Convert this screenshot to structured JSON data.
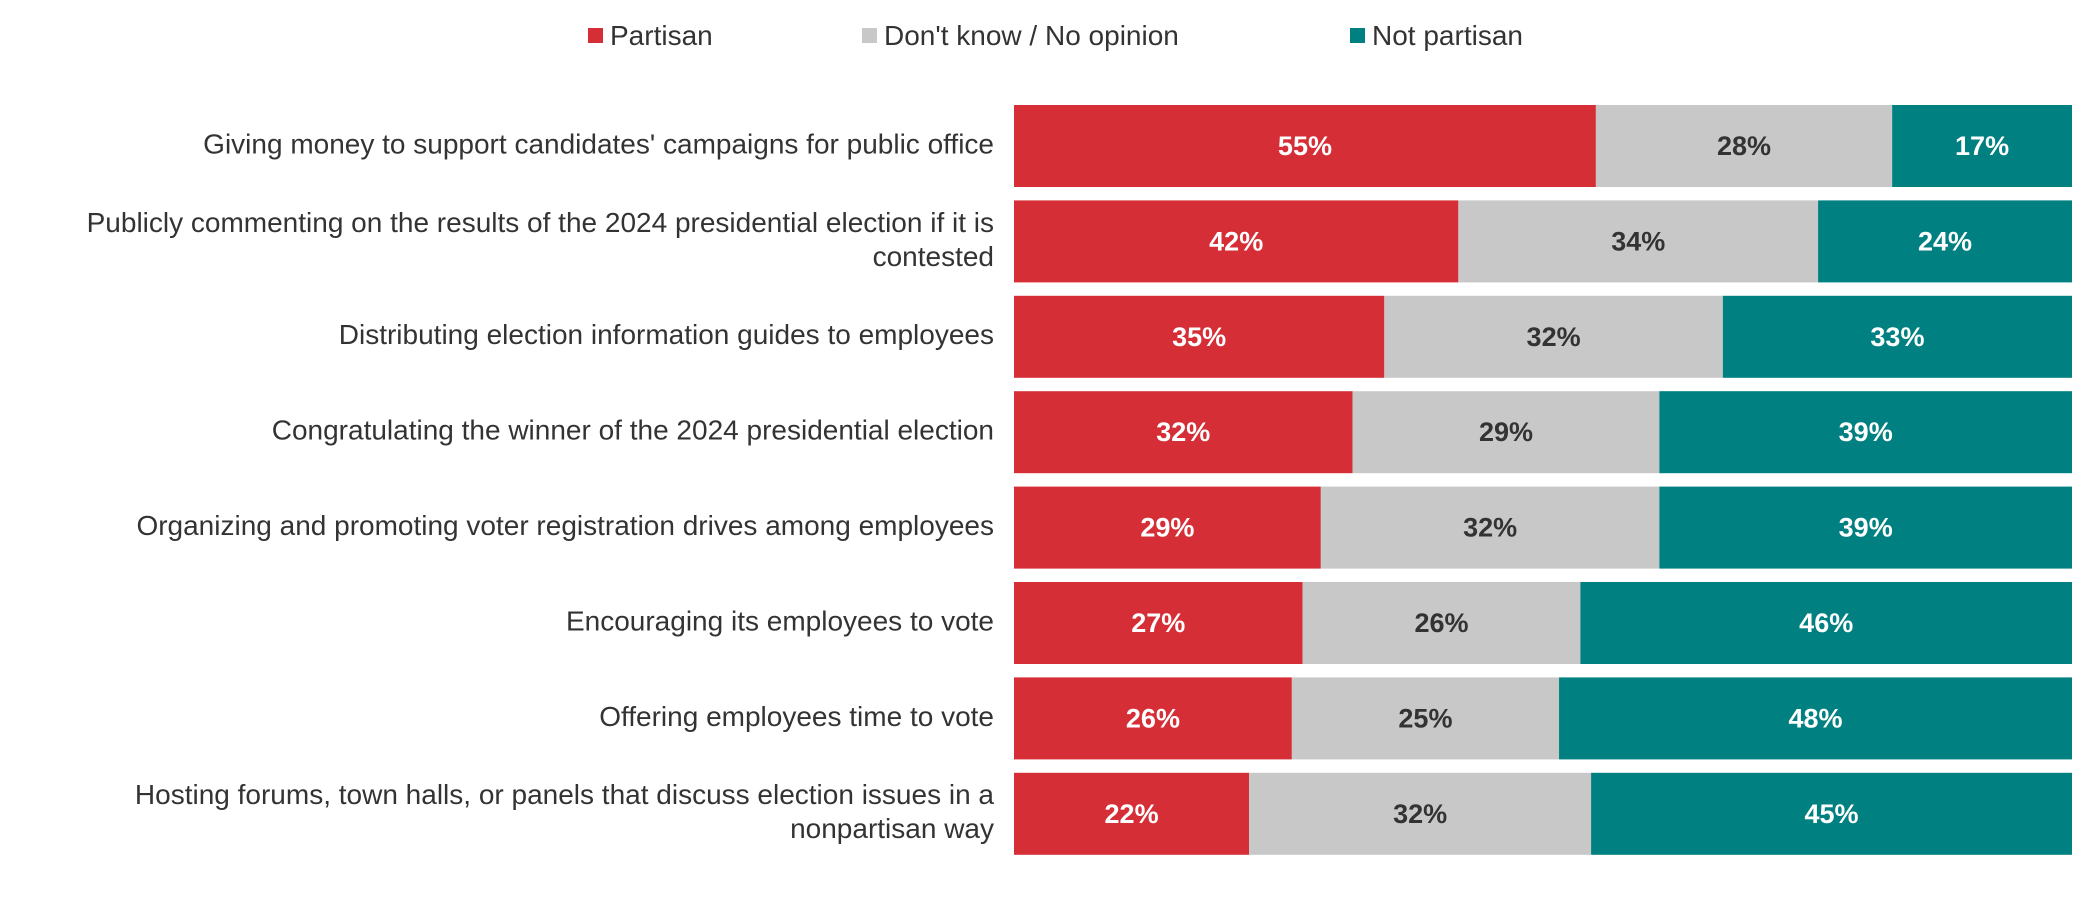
{
  "chart_data": {
    "type": "bar",
    "orientation": "horizontal",
    "stacked": true,
    "legend_position": "top",
    "grid": false,
    "xlim": [
      0,
      100
    ],
    "categories": [
      [
        "Giving money to support candidates' campaigns for public office"
      ],
      [
        "Publicly commenting on the results of the 2024 presidential election if it is",
        "contested"
      ],
      [
        "Distributing election information guides to employees"
      ],
      [
        "Congratulating the winner of the 2024 presidential election"
      ],
      [
        "Organizing and promoting voter registration drives among employees"
      ],
      [
        "Encouraging its employees to vote"
      ],
      [
        "Offering employees time to vote"
      ],
      [
        "Hosting forums, town halls, or panels that discuss election issues in a",
        "nonpartisan way"
      ]
    ],
    "series": [
      {
        "name": "Partisan",
        "color": "#d62e36",
        "label_color": "#ffffff",
        "values": [
          55,
          42,
          35,
          32,
          29,
          27,
          26,
          22
        ]
      },
      {
        "name": "Don't know / No opinion",
        "color": "#c8c8c8",
        "label_color": "#333333",
        "values": [
          28,
          34,
          32,
          29,
          32,
          26,
          25,
          32
        ]
      },
      {
        "name": "Not partisan",
        "color": "#008080",
        "label_color": "#ffffff",
        "values": [
          17,
          24,
          33,
          39,
          39,
          46,
          48,
          45
        ]
      }
    ],
    "value_suffix": "%"
  }
}
